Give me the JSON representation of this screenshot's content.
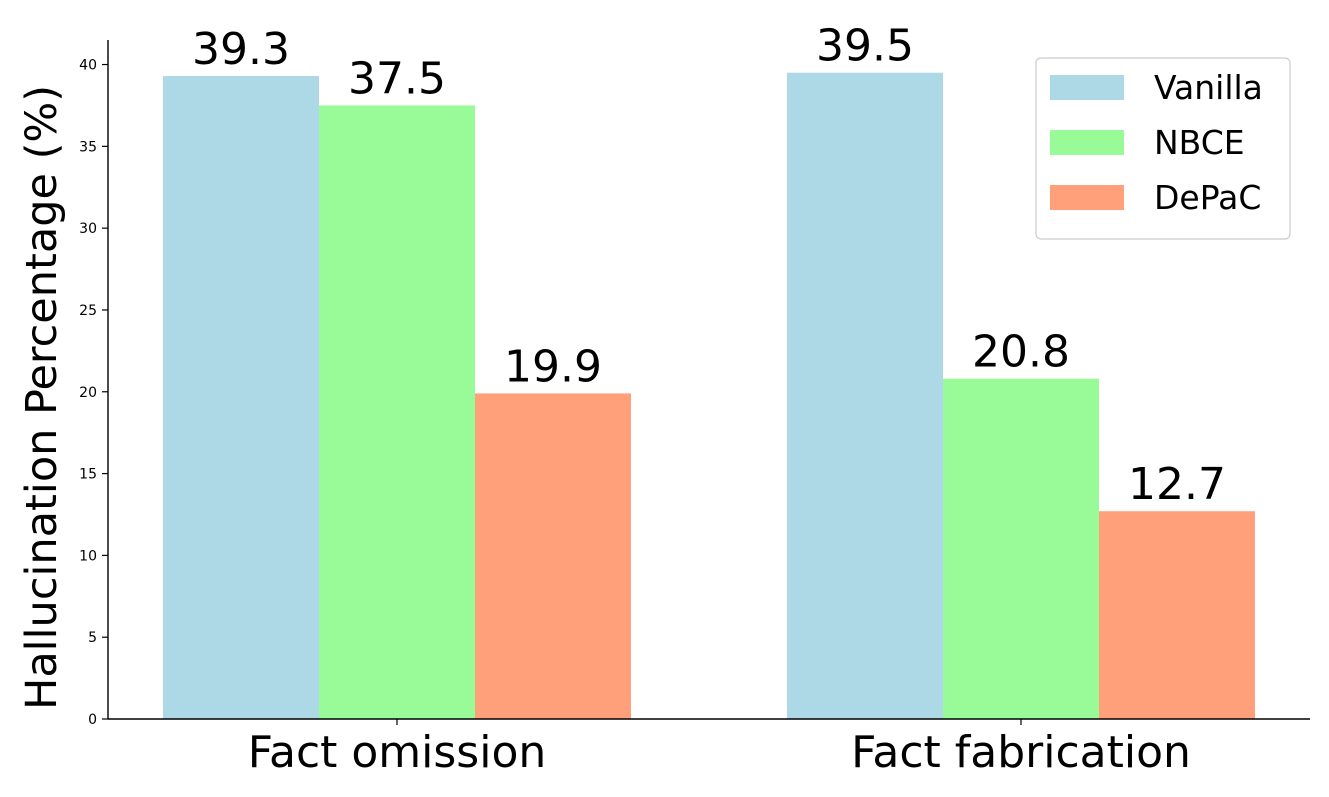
{
  "chart_data": {
    "type": "bar",
    "title": "",
    "xlabel": "",
    "ylabel": "Hallucination Percentage (%)",
    "categories": [
      "Fact omission",
      "Fact fabrication"
    ],
    "series": [
      {
        "name": "Vanilla",
        "color": "#add8e6",
        "values": [
          39.3,
          39.5
        ]
      },
      {
        "name": "NBCE",
        "color": "#98fb98",
        "values": [
          37.5,
          20.8
        ]
      },
      {
        "name": "DePaC",
        "color": "#ffa07a",
        "values": [
          19.9,
          12.7
        ]
      }
    ],
    "ylim": [
      0,
      41.5
    ],
    "yticks": [
      0,
      5,
      10,
      15,
      20,
      25,
      30,
      35,
      40
    ],
    "grid": false,
    "legend_position": "top-right",
    "value_labels": true
  }
}
